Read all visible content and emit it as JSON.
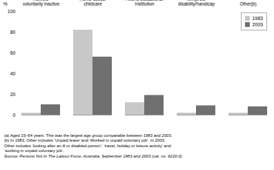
{
  "chart_data": {
    "type": "bar",
    "categories": [
      "Retired/\nvoluntarily inactive",
      "Home duties/\nchildcare",
      "Attend educational\nInstitution",
      "Ill/injured/\ndisability/handicap",
      "Other(b)"
    ],
    "series": [
      {
        "name": "1983",
        "color": "#c8c8c8",
        "values": [
          2,
          82,
          12,
          2,
          2
        ]
      },
      {
        "name": "2003",
        "color": "#707070",
        "values": [
          10,
          56,
          19,
          9,
          8
        ]
      }
    ],
    "ylabel": "%",
    "ylim": [
      0,
      100
    ],
    "yticks": [
      0,
      20,
      40,
      60,
      80,
      100
    ],
    "legend": "upper right",
    "annotations": [
      "(a) Aged 15–64 years. This was the largest age group comparable between 1983 and 2003.",
      "(b) In 1983, Other includes ‘Unpaid leave’ and ‘Worked in unpaid voluntary job’. In 2003,",
      "Other includes ‘looking after an ill or disabled person’; ‘travel, holiday or leisure activity’ and",
      "‘working in unpaid voluntary job’."
    ],
    "source": "Source: Persons Not In The Labour Force, Australia, September 1983 and 2003 (cat. no. 6220.0)."
  }
}
